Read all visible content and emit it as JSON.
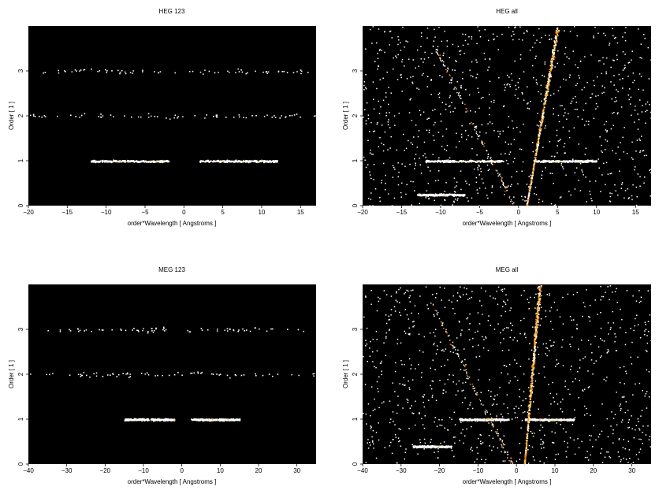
{
  "chart_data": [
    {
      "type": "heatmap",
      "title": "HEG 123",
      "xlabel": "order*Wavelength [ Angstroms ]",
      "ylabel": "Order [ 1 ]",
      "xlim": [
        -20,
        17
      ],
      "ylim": [
        0,
        4
      ],
      "xticks": [
        -20,
        -15,
        -10,
        -5,
        0,
        5,
        10,
        15
      ],
      "yticks": [
        0,
        1,
        2,
        3
      ],
      "background": "#000000",
      "colors": [
        "#ffffff",
        "#ffcc55",
        "#ff8800"
      ],
      "bands": [
        {
          "order": 1,
          "ranges": [
            [
              -12,
              -2
            ],
            [
              2,
              12
            ]
          ],
          "density": "high"
        },
        {
          "order": 2,
          "ranges": [
            [
              -20,
              16
            ]
          ],
          "density": "low"
        },
        {
          "order": 3,
          "ranges": [
            [
              -20,
              16
            ]
          ],
          "density": "low"
        }
      ]
    },
    {
      "type": "heatmap",
      "title": "HEG all",
      "xlabel": "order*Wavelength [ Angstroms ]",
      "ylabel": "Order [ 1 ]",
      "xlim": [
        -20,
        17
      ],
      "ylim": [
        0,
        4
      ],
      "xticks": [
        -20,
        -15,
        -10,
        -5,
        0,
        5,
        10,
        15
      ],
      "yticks": [
        0,
        1,
        2,
        3
      ],
      "background": "#000000",
      "colors": [
        "#ffffff",
        "#ffcc55",
        "#ff8800"
      ],
      "bands": [
        {
          "order": 1,
          "ranges": [
            [
              -12,
              -2
            ],
            [
              2,
              10
            ]
          ],
          "density": "high"
        },
        {
          "order": 0.25,
          "ranges": [
            [
              -13,
              -7
            ]
          ],
          "density": "high"
        }
      ],
      "streak": {
        "from": [
          1,
          0
        ],
        "to": [
          5,
          4
        ]
      },
      "background_noise": "heavy"
    },
    {
      "type": "heatmap",
      "title": "MEG 123",
      "xlabel": "order*Wavelength [ Angstroms ]",
      "ylabel": "Order [ 1 ]",
      "xlim": [
        -40,
        35
      ],
      "ylim": [
        0,
        4
      ],
      "xticks": [
        -40,
        -30,
        -20,
        -10,
        0,
        10,
        20,
        30
      ],
      "yticks": [
        0,
        1,
        2,
        3
      ],
      "background": "#000000",
      "colors": [
        "#ffffff",
        "#ffcc55",
        "#ff8800"
      ],
      "bands": [
        {
          "order": 1,
          "ranges": [
            [
              -15,
              -2
            ],
            [
              2,
              15
            ]
          ],
          "density": "high"
        },
        {
          "order": 2,
          "ranges": [
            [
              -30,
              30
            ]
          ],
          "density": "low"
        },
        {
          "order": 3,
          "ranges": [
            [
              -30,
              32
            ]
          ],
          "density": "low"
        }
      ]
    },
    {
      "type": "heatmap",
      "title": "MEG all",
      "xlabel": "order*Wavelength [ Angstroms ]",
      "ylabel": "Order [ 1 ]",
      "xlim": [
        -40,
        35
      ],
      "ylim": [
        0,
        4
      ],
      "xticks": [
        -40,
        -30,
        -20,
        -10,
        0,
        10,
        20,
        30
      ],
      "yticks": [
        0,
        1,
        2,
        3
      ],
      "background": "#000000",
      "colors": [
        "#ffffff",
        "#ffcc55",
        "#ff8800"
      ],
      "bands": [
        {
          "order": 1,
          "ranges": [
            [
              -15,
              -2
            ],
            [
              2,
              15
            ]
          ],
          "density": "high"
        },
        {
          "order": 0.4,
          "ranges": [
            [
              -27,
              -17
            ]
          ],
          "density": "high"
        }
      ],
      "streak": {
        "from": [
          2,
          0
        ],
        "to": [
          6,
          4
        ]
      },
      "background_noise": "heavy"
    }
  ]
}
